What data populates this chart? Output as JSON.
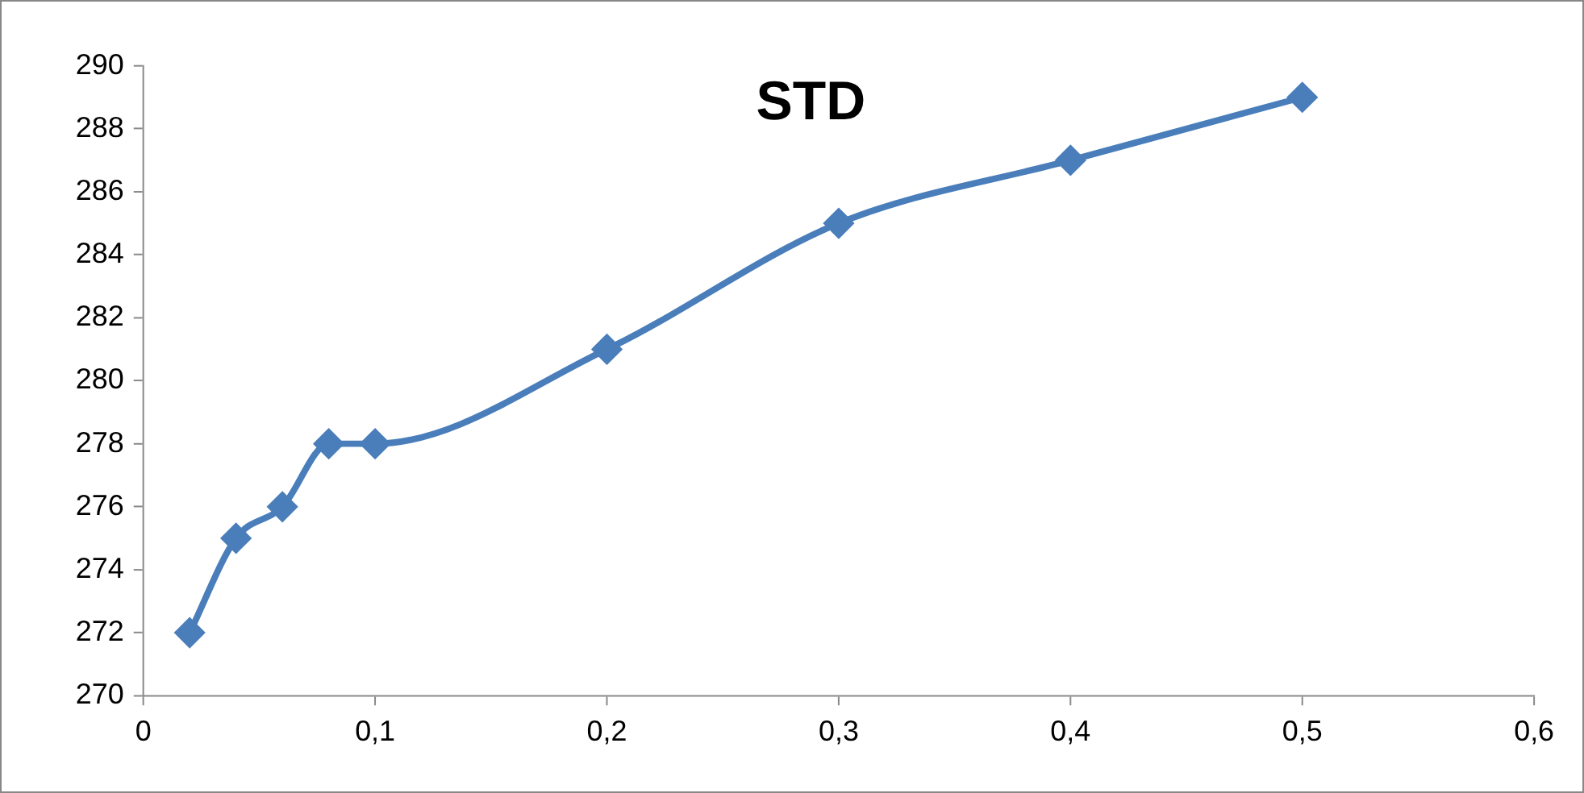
{
  "chart_data": {
    "type": "line",
    "title": "STD",
    "x": [
      0.02,
      0.04,
      0.06,
      0.08,
      0.1,
      0.2,
      0.3,
      0.4,
      0.5
    ],
    "series": [
      {
        "color": "#4a7ebb",
        "values": [
          272,
          275,
          276,
          278,
          278,
          281,
          285,
          287,
          289
        ]
      }
    ],
    "xlim": [
      0,
      0.6
    ],
    "xticks": [
      0,
      {
        "value": 0.1,
        "label": "0,1"
      },
      {
        "value": 0.2,
        "label": "0,2"
      },
      {
        "value": 0.3,
        "label": "0,3"
      },
      {
        "value": 0.4,
        "label": "0,4"
      },
      {
        "value": 0.5,
        "label": "0,5"
      },
      {
        "value": 0.6,
        "label": "0,6"
      }
    ],
    "ylim": [
      270,
      290
    ],
    "yticks": [
      270,
      272,
      274,
      276,
      278,
      280,
      282,
      284,
      286,
      288,
      290
    ],
    "legend": false,
    "marker": "diamond",
    "line_style": "solid"
  }
}
